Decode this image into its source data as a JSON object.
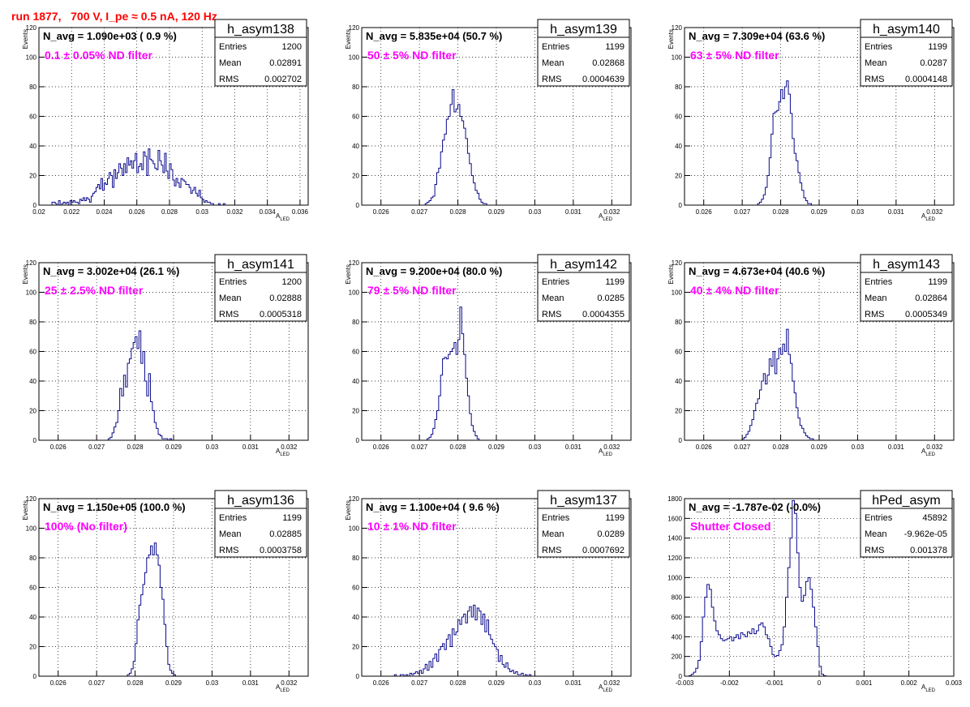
{
  "page": {
    "title": "run 1877,   700 V, I_pe ≈ 0.5 nA, 120 Hz"
  },
  "chart_data": [
    {
      "type": "histogram",
      "name": "h_asym138",
      "navg_text": "N_avg = 1.090e+03 ( 0.9 %)",
      "filter_text": "0.1 ± 0.05% ND filter",
      "stats": {
        "entries": "1200",
        "mean": "0.02891",
        "rms": "0.002702"
      },
      "xlabel": "A",
      "xlabel_sub": "LED",
      "ylabel": "Events",
      "xlim": [
        0.02,
        0.0365
      ],
      "ylim": [
        0,
        120
      ],
      "xticks": [
        0.02,
        0.022,
        0.024,
        0.026,
        0.028,
        0.03,
        0.032,
        0.034,
        0.036
      ],
      "xticklabels": [
        "0.02",
        "0.022",
        "0.024",
        "0.026",
        "0.028",
        "0.03",
        "0.032",
        "0.034",
        "0.036"
      ],
      "yticks": [
        0,
        20,
        40,
        60,
        80,
        100,
        120
      ],
      "yticklabels": [
        "0",
        "20",
        "40",
        "60",
        "80",
        "100",
        "120"
      ],
      "bins": {
        "start": 0.0205,
        "width": 0.0001,
        "counts": [
          0,
          0,
          0,
          2,
          2,
          1,
          0,
          3,
          0,
          1,
          2,
          1,
          2,
          0,
          3,
          2,
          3,
          2,
          2,
          1,
          4,
          3,
          5,
          3,
          5,
          4,
          2,
          6,
          8,
          9,
          12,
          14,
          11,
          18,
          10,
          15,
          14,
          18,
          22,
          20,
          12,
          24,
          18,
          22,
          28,
          25,
          20,
          28,
          22,
          32,
          27,
          30,
          25,
          30,
          35,
          22,
          26,
          28,
          24,
          36,
          33,
          20,
          38,
          31,
          30,
          28,
          25,
          24,
          37,
          30,
          27,
          22,
          35,
          23,
          18,
          28,
          24,
          17,
          13,
          18,
          15,
          12,
          18,
          17,
          16,
          14,
          14,
          12,
          8,
          10,
          12,
          8,
          6,
          10,
          5,
          4,
          2,
          3,
          2,
          2,
          1,
          1,
          0,
          0,
          0,
          1,
          0,
          0,
          1,
          0,
          0,
          0
        ]
      }
    },
    {
      "type": "histogram",
      "name": "h_asym139",
      "navg_text": "N_avg = 5.835e+04 (50.7 %)",
      "filter_text": "50 ± 5% ND filter",
      "stats": {
        "entries": "1199",
        "mean": "0.02868",
        "rms": "0.0004639"
      },
      "xlabel": "A",
      "xlabel_sub": "LED",
      "ylabel": "Events",
      "xlim": [
        0.0255,
        0.0325
      ],
      "ylim": [
        0,
        120
      ],
      "xticks": [
        0.026,
        0.027,
        0.028,
        0.029,
        0.03,
        0.031,
        0.032
      ],
      "xticklabels": [
        "0.026",
        "0.027",
        "0.028",
        "0.029",
        "0.03",
        "0.031",
        "0.032"
      ],
      "yticks": [
        0,
        20,
        40,
        60,
        80,
        100,
        120
      ],
      "yticklabels": [
        "0",
        "20",
        "40",
        "60",
        "80",
        "100",
        "120"
      ],
      "bins": {
        "start": 0.02715,
        "width": 5e-05,
        "counts": [
          1,
          2,
          3,
          5,
          6,
          14,
          22,
          25,
          36,
          44,
          48,
          58,
          60,
          68,
          78,
          63,
          65,
          68,
          60,
          57,
          52,
          45,
          35,
          28,
          20,
          15,
          10,
          8,
          4,
          2,
          1,
          1
        ]
      }
    },
    {
      "type": "histogram",
      "name": "h_asym140",
      "navg_text": "N_avg = 7.309e+04 (63.6 %)",
      "filter_text": "63 ± 5% ND filter",
      "stats": {
        "entries": "1199",
        "mean": "0.0287",
        "rms": "0.0004148"
      },
      "xlabel": "A",
      "xlabel_sub": "LED",
      "ylabel": "Events",
      "xlim": [
        0.0255,
        0.0325
      ],
      "ylim": [
        0,
        120
      ],
      "xticks": [
        0.026,
        0.027,
        0.028,
        0.029,
        0.03,
        0.031,
        0.032
      ],
      "xticklabels": [
        "0.026",
        "0.027",
        "0.028",
        "0.029",
        "0.03",
        "0.031",
        "0.032"
      ],
      "yticks": [
        0,
        20,
        40,
        60,
        80,
        100,
        120
      ],
      "yticklabels": [
        "0",
        "20",
        "40",
        "60",
        "80",
        "100",
        "120"
      ],
      "bins": {
        "start": 0.0274,
        "width": 5e-05,
        "counts": [
          1,
          2,
          4,
          7,
          12,
          20,
          32,
          48,
          62,
          63,
          64,
          70,
          78,
          72,
          80,
          84,
          75,
          62,
          45,
          35,
          30,
          22,
          15,
          10,
          5,
          3,
          1,
          1
        ]
      }
    },
    {
      "type": "histogram",
      "name": "h_asym141",
      "navg_text": "N_avg = 3.002e+04 (26.1 %)",
      "filter_text": "25 ± 2.5% ND filter",
      "stats": {
        "entries": "1200",
        "mean": "0.02888",
        "rms": "0.0005318"
      },
      "xlabel": "A",
      "xlabel_sub": "LED",
      "ylabel": "Events",
      "xlim": [
        0.0255,
        0.0325
      ],
      "ylim": [
        0,
        120
      ],
      "xticks": [
        0.026,
        0.027,
        0.028,
        0.029,
        0.03,
        0.031,
        0.032
      ],
      "xticklabels": [
        "0.026",
        "0.027",
        "0.028",
        "0.029",
        "0.03",
        "0.031",
        "0.032"
      ],
      "yticks": [
        0,
        20,
        40,
        60,
        80,
        100,
        120
      ],
      "yticklabels": [
        "0",
        "20",
        "40",
        "60",
        "80",
        "100",
        "120"
      ],
      "bins": {
        "start": 0.0273,
        "width": 5e-05,
        "counts": [
          1,
          2,
          5,
          9,
          12,
          20,
          35,
          30,
          44,
          36,
          52,
          55,
          62,
          66,
          70,
          62,
          74,
          52,
          60,
          40,
          30,
          45,
          26,
          20,
          12,
          8,
          4,
          3,
          1,
          1,
          1,
          0,
          1
        ]
      }
    },
    {
      "type": "histogram",
      "name": "h_asym142",
      "navg_text": "N_avg = 9.200e+04 (80.0 %)",
      "filter_text": "79 ± 5% ND filter",
      "stats": {
        "entries": "1199",
        "mean": "0.0285",
        "rms": "0.0004355"
      },
      "xlabel": "A",
      "xlabel_sub": "LED",
      "ylabel": "Events",
      "xlim": [
        0.0255,
        0.0325
      ],
      "ylim": [
        0,
        120
      ],
      "xticks": [
        0.026,
        0.027,
        0.028,
        0.029,
        0.03,
        0.031,
        0.032
      ],
      "xticklabels": [
        "0.026",
        "0.027",
        "0.028",
        "0.029",
        "0.03",
        "0.031",
        "0.032"
      ],
      "yticks": [
        0,
        20,
        40,
        60,
        80,
        100,
        120
      ],
      "yticklabels": [
        "0",
        "20",
        "40",
        "60",
        "80",
        "100",
        "120"
      ],
      "bins": {
        "start": 0.0272,
        "width": 5e-05,
        "counts": [
          1,
          2,
          4,
          8,
          14,
          20,
          30,
          44,
          55,
          56,
          55,
          58,
          60,
          62,
          66,
          58,
          68,
          90,
          72,
          58,
          42,
          30,
          18,
          10,
          6,
          3,
          1
        ]
      }
    },
    {
      "type": "histogram",
      "name": "h_asym143",
      "navg_text": "N_avg = 4.673e+04 (40.6 %)",
      "filter_text": "40 ± 4% ND filter",
      "stats": {
        "entries": "1199",
        "mean": "0.02864",
        "rms": "0.0005349"
      },
      "xlabel": "A",
      "xlabel_sub": "LED",
      "ylabel": "Events",
      "xlim": [
        0.0255,
        0.0325
      ],
      "ylim": [
        0,
        120
      ],
      "xticks": [
        0.026,
        0.027,
        0.028,
        0.029,
        0.03,
        0.031,
        0.032
      ],
      "xticklabels": [
        "0.026",
        "0.027",
        "0.028",
        "0.029",
        "0.03",
        "0.031",
        "0.032"
      ],
      "yticks": [
        0,
        20,
        40,
        60,
        80,
        100,
        120
      ],
      "yticklabels": [
        "0",
        "20",
        "40",
        "60",
        "80",
        "100",
        "120"
      ],
      "bins": {
        "start": 0.027,
        "width": 5e-05,
        "counts": [
          1,
          2,
          4,
          6,
          10,
          14,
          20,
          25,
          28,
          34,
          40,
          45,
          38,
          44,
          55,
          50,
          60,
          45,
          55,
          62,
          58,
          65,
          60,
          75,
          58,
          52,
          40,
          32,
          22,
          15,
          10,
          8,
          5,
          3,
          2,
          1,
          1
        ]
      }
    },
    {
      "type": "histogram",
      "name": "h_asym136",
      "navg_text": "N_avg = 1.150e+05 (100.0 %)",
      "filter_text": "100% (No filter)",
      "stats": {
        "entries": "1199",
        "mean": "0.02885",
        "rms": "0.0003758"
      },
      "xlabel": "A",
      "xlabel_sub": "LED",
      "ylabel": "Events",
      "xlim": [
        0.0255,
        0.0325
      ],
      "ylim": [
        0,
        120
      ],
      "xticks": [
        0.026,
        0.027,
        0.028,
        0.029,
        0.03,
        0.031,
        0.032
      ],
      "xticklabels": [
        "0.026",
        "0.027",
        "0.028",
        "0.029",
        "0.03",
        "0.031",
        "0.032"
      ],
      "yticks": [
        0,
        20,
        40,
        60,
        80,
        100,
        120
      ],
      "yticklabels": [
        "0",
        "20",
        "40",
        "60",
        "80",
        "100",
        "120"
      ],
      "bins": {
        "start": 0.0278,
        "width": 5e-05,
        "counts": [
          1,
          2,
          5,
          10,
          22,
          38,
          48,
          55,
          62,
          70,
          80,
          82,
          88,
          82,
          90,
          82,
          75,
          60,
          52,
          35,
          20,
          8,
          4,
          2,
          1
        ]
      }
    },
    {
      "type": "histogram",
      "name": "h_asym137",
      "navg_text": "N_avg = 1.100e+04 ( 9.6 %)",
      "filter_text": "10 ± 1% ND filter",
      "stats": {
        "entries": "1199",
        "mean": "0.0289",
        "rms": "0.0007692"
      },
      "xlabel": "A",
      "xlabel_sub": "LED",
      "ylabel": "Events",
      "xlim": [
        0.0255,
        0.0325
      ],
      "ylim": [
        0,
        120
      ],
      "xticks": [
        0.026,
        0.027,
        0.028,
        0.029,
        0.03,
        0.031,
        0.032
      ],
      "xticklabels": [
        "0.026",
        "0.027",
        "0.028",
        "0.029",
        "0.03",
        "0.031",
        "0.032"
      ],
      "yticks": [
        0,
        20,
        40,
        60,
        80,
        100,
        120
      ],
      "yticklabels": [
        "0",
        "20",
        "40",
        "60",
        "80",
        "100",
        "120"
      ],
      "bins": {
        "start": 0.0263,
        "width": 5e-05,
        "counts": [
          0,
          1,
          0,
          0,
          1,
          1,
          0,
          1,
          0,
          2,
          1,
          2,
          3,
          2,
          4,
          2,
          5,
          8,
          4,
          10,
          6,
          12,
          15,
          10,
          18,
          20,
          22,
          18,
          25,
          28,
          20,
          32,
          28,
          30,
          38,
          35,
          40,
          42,
          36,
          44,
          47,
          40,
          48,
          38,
          46,
          44,
          35,
          42,
          30,
          38,
          28,
          25,
          22,
          20,
          18,
          10,
          14,
          8,
          6,
          9,
          5,
          3,
          4,
          2,
          3,
          1,
          1,
          2,
          0,
          1,
          0,
          1
        ]
      }
    },
    {
      "type": "histogram",
      "name": "hPed_asym",
      "navg_text": "N_avg = -1.787e-02 (-0.0%)",
      "filter_text": "Shutter Closed",
      "stats": {
        "entries": "45892",
        "mean": "-9.962e-05",
        "rms": "0.001378"
      },
      "xlabel": "A",
      "xlabel_sub": "LED",
      "ylabel": "",
      "xlim": [
        -0.003,
        0.003
      ],
      "ylim": [
        0,
        1800
      ],
      "xticks": [
        -0.003,
        -0.002,
        -0.001,
        0,
        0.001,
        0.002,
        0.003
      ],
      "xticklabels": [
        "-0.003",
        "-0.002",
        "-0.001",
        "0",
        "0.001",
        "0.002",
        "0.003"
      ],
      "yticks": [
        0,
        200,
        400,
        600,
        800,
        1000,
        1200,
        1400,
        1600,
        1800
      ],
      "yticklabels": [
        "0",
        "200",
        "400",
        "600",
        "800",
        "1000",
        "1200",
        "1400",
        "1600",
        "1800"
      ],
      "bins": {
        "start": -0.0029,
        "width": 5e-05,
        "counts": [
          5,
          20,
          40,
          80,
          160,
          350,
          600,
          800,
          930,
          880,
          700,
          560,
          460,
          420,
          380,
          360,
          370,
          380,
          400,
          360,
          390,
          420,
          380,
          440,
          420,
          400,
          450,
          430,
          480,
          430,
          460,
          520,
          540,
          500,
          420,
          380,
          300,
          220,
          200,
          210,
          260,
          320,
          500,
          800,
          1100,
          1400,
          1780,
          1650,
          1250,
          900,
          760,
          820,
          960,
          1000,
          880,
          700,
          500,
          300,
          100,
          20,
          5
        ]
      }
    }
  ]
}
